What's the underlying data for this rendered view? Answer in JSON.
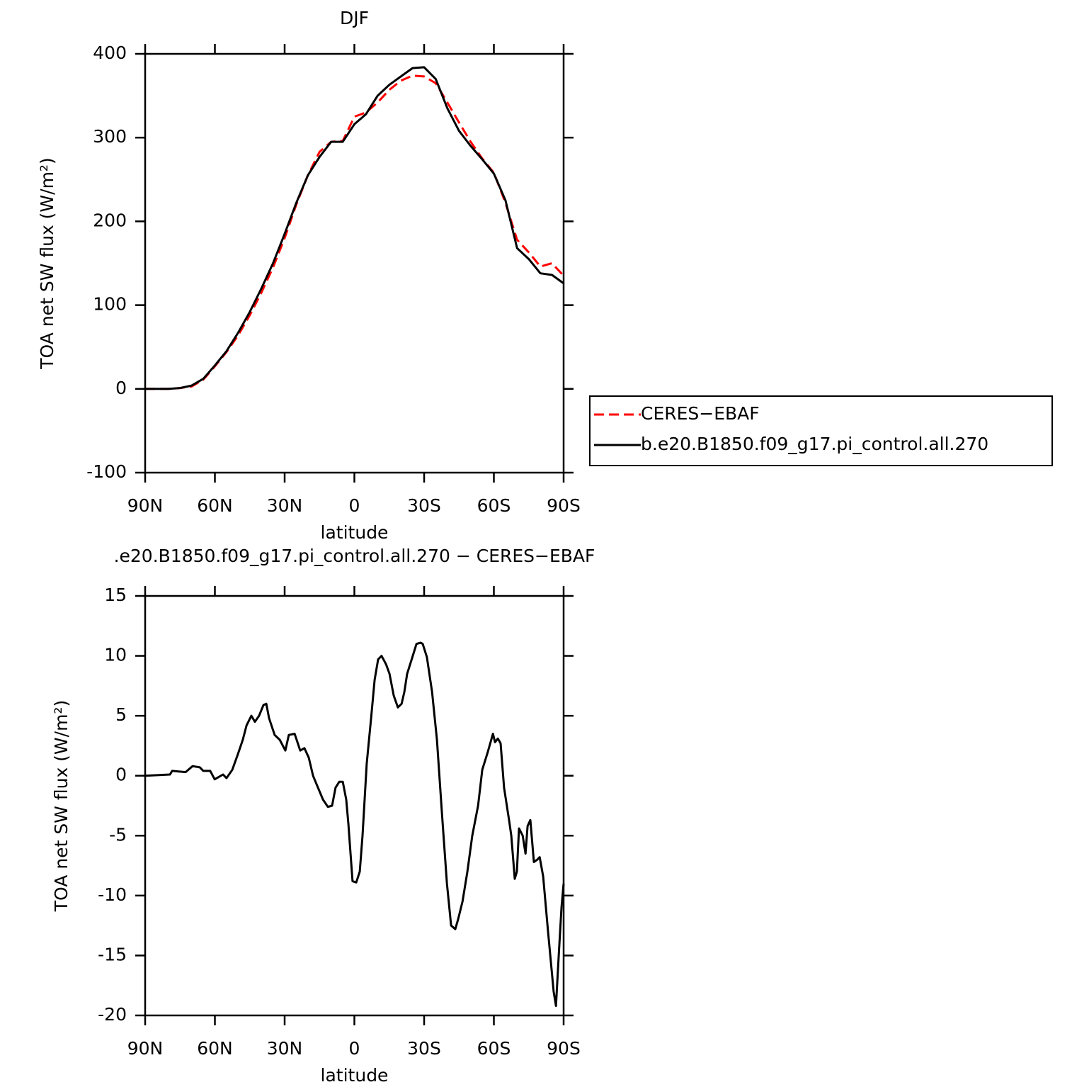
{
  "chart_data": [
    {
      "type": "line",
      "title": "DJF",
      "xlabel": "latitude",
      "ylabel": "TOA net SW flux (W/m²)",
      "x": [
        90,
        85,
        80,
        75,
        70,
        65,
        60,
        55,
        50,
        45,
        40,
        35,
        30,
        25,
        20,
        15,
        10,
        5,
        0,
        -5,
        -10,
        -15,
        -20,
        -25,
        -30,
        -35,
        -40,
        -45,
        -50,
        -55,
        -60,
        -65,
        -70,
        -75,
        -80,
        -85,
        -90
      ],
      "series": [
        {
          "name": "CERES−EBAF",
          "color": "#ff0000",
          "line_style": "dashed",
          "values": [
            0,
            0,
            0,
            1,
            3,
            11,
            27,
            44,
            64,
            88,
            115,
            145,
            180,
            220,
            255,
            283,
            295,
            296,
            325,
            330,
            342,
            357,
            368,
            374,
            373,
            365,
            342,
            318,
            295,
            275,
            258,
            222,
            178,
            163,
            146,
            150,
            135
          ]
        },
        {
          "name": "b.e20.B1850.f09_g17.pi_control.all.270",
          "color": "#000000",
          "line_style": "solid",
          "values": [
            0,
            0,
            0,
            1,
            4,
            12,
            28,
            45,
            67,
            92,
            120,
            150,
            185,
            222,
            255,
            277,
            295,
            295,
            316,
            328,
            350,
            363,
            373,
            383,
            384,
            370,
            335,
            308,
            290,
            274,
            257,
            225,
            168,
            155,
            138,
            136,
            126
          ]
        }
      ],
      "xlim": [
        90,
        -90
      ],
      "xticks": [
        {
          "value": 90,
          "label": "90N"
        },
        {
          "value": 60,
          "label": "60N"
        },
        {
          "value": 30,
          "label": "30N"
        },
        0,
        {
          "value": -30,
          "label": "30S"
        },
        {
          "value": -60,
          "label": "60S"
        },
        {
          "value": -90,
          "label": "90S"
        }
      ],
      "ylim": [
        -100,
        400
      ],
      "yticks": [
        -100,
        0,
        100,
        200,
        300,
        400
      ],
      "legend": "right"
    },
    {
      "type": "line",
      "title": ".e20.B1850.f09_g17.pi_control.all.270 − CERES−EBAF",
      "xlabel": "latitude",
      "ylabel": "TOA net SW flux (W/m²)",
      "x": [
        90,
        79.3,
        78.4,
        72.6,
        69.6,
        66.5,
        65,
        62,
        60.1,
        56.5,
        55,
        52.5,
        50.1,
        48,
        46.4,
        44.3,
        42.8,
        41,
        39.1,
        37.9,
        36.7,
        34.3,
        32.1,
        29.7,
        28.2,
        25.7,
        23.3,
        21.5,
        19.6,
        17.8,
        16.3,
        13.5,
        11.4,
        9.6,
        8.1,
        6.5,
        5,
        3.5,
        2.6,
        0.8,
        -0.8,
        -2.3,
        -3.5,
        -5.3,
        -7.2,
        -8.7,
        -10.2,
        -11.7,
        -13.6,
        -15.1,
        -16.9,
        -18.7,
        -20.3,
        -21.5,
        -22.7,
        -24.8,
        -26.7,
        -28.5,
        -29.4,
        -31.2,
        -33.4,
        -35.5,
        -37.6,
        -39.8,
        -41.6,
        -43.4,
        -44.6,
        -46.5,
        -48.6,
        -50.7,
        -53.2,
        -55,
        -57.4,
        -59.6,
        -60.5,
        -61.7,
        -62.9,
        -64.4,
        -66.6,
        -67.5,
        -69,
        -69.9,
        -70.8,
        -72.4,
        -73.6,
        -74.5,
        -75.7,
        -77.2,
        -78.7,
        -79.7,
        -81.2,
        -83.3,
        -85.7,
        -86.7,
        -87.9,
        -89.1,
        -90
      ],
      "series": [
        {
          "color": "#000000",
          "line_style": "solid",
          "values": [
            0,
            0.1,
            0.4,
            0.3,
            0.8,
            0.7,
            0.4,
            0.4,
            -0.3,
            0.1,
            -0.2,
            0.5,
            1.8,
            3,
            4.2,
            5,
            4.5,
            5,
            5.9,
            6,
            4.8,
            3.4,
            3,
            2.1,
            3.4,
            3.5,
            2.1,
            2.3,
            1.5,
            0,
            -0.7,
            -2,
            -2.6,
            -2.5,
            -1,
            -0.5,
            -0.5,
            -2,
            -4,
            -8.8,
            -8.9,
            -8,
            -5,
            1,
            4.8,
            8,
            9.7,
            10,
            9.3,
            8.5,
            6.7,
            5.7,
            6,
            7,
            8.5,
            9.8,
            11,
            11.1,
            11,
            9.9,
            7,
            3,
            -3,
            -9,
            -12.5,
            -12.8,
            -12,
            -10.5,
            -8,
            -5,
            -2.5,
            0.5,
            2,
            3.5,
            2.8,
            3.1,
            2.7,
            -1,
            -3.8,
            -5,
            -8.6,
            -8,
            -4.4,
            -5,
            -6.5,
            -4.2,
            -3.7,
            -7.2,
            -7,
            -6.8,
            -8.4,
            -13,
            -18,
            -19.2,
            -15,
            -11,
            -9
          ]
        }
      ],
      "xlim": [
        90,
        -90
      ],
      "xticks": [
        {
          "value": 90,
          "label": "90N"
        },
        {
          "value": 60,
          "label": "60N"
        },
        {
          "value": 30,
          "label": "30N"
        },
        0,
        {
          "value": -30,
          "label": "30S"
        },
        {
          "value": -60,
          "label": "60S"
        },
        {
          "value": -90,
          "label": "90S"
        }
      ],
      "ylim": [
        -20,
        15
      ],
      "yticks": [
        -20,
        -15,
        -10,
        -5,
        0,
        5,
        10,
        15
      ]
    }
  ]
}
